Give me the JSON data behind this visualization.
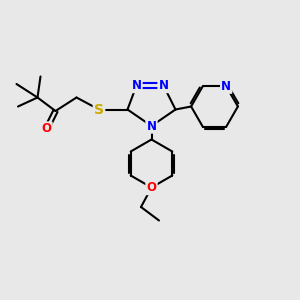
{
  "bg_color": "#e8e8e8",
  "bond_color": "#000000",
  "bond_width": 1.5,
  "atom_colors": {
    "N": "#0000ff",
    "O": "#ff0000",
    "S": "#ccaa00",
    "C": "#000000"
  },
  "font_size": 8.5,
  "fig_size": [
    3.0,
    3.0
  ],
  "dpi": 100
}
